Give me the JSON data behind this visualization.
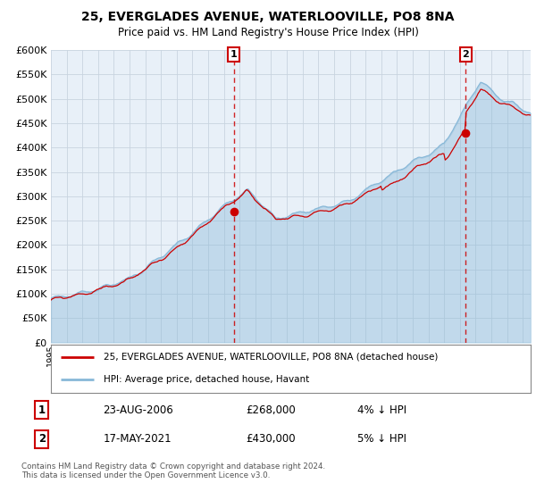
{
  "title": "25, EVERGLADES AVENUE, WATERLOOVILLE, PO8 8NA",
  "subtitle": "Price paid vs. HM Land Registry's House Price Index (HPI)",
  "legend_line1": "25, EVERGLADES AVENUE, WATERLOOVILLE, PO8 8NA (detached house)",
  "legend_line2": "HPI: Average price, detached house, Havant",
  "annotation1_label": "1",
  "annotation1_date": "23-AUG-2006",
  "annotation1_price": "£268,000",
  "annotation1_hpi": "4% ↓ HPI",
  "annotation1_year": 2006.63,
  "annotation1_value": 268000,
  "annotation2_label": "2",
  "annotation2_date": "17-MAY-2021",
  "annotation2_price": "£430,000",
  "annotation2_hpi": "5% ↓ HPI",
  "annotation2_year": 2021.37,
  "annotation2_value": 430000,
  "footer": "Contains HM Land Registry data © Crown copyright and database right 2024.\nThis data is licensed under the Open Government Licence v3.0.",
  "ylim": [
    0,
    600000
  ],
  "yticks": [
    0,
    50000,
    100000,
    150000,
    200000,
    250000,
    300000,
    350000,
    400000,
    450000,
    500000,
    550000,
    600000
  ],
  "xlim_start": 1995.0,
  "xlim_end": 2025.5,
  "background_color": "#e8f0f8",
  "red_color": "#cc0000",
  "blue_color": "#88b8d8",
  "title_color": "#000000",
  "grid_color": "#c8d4e0"
}
